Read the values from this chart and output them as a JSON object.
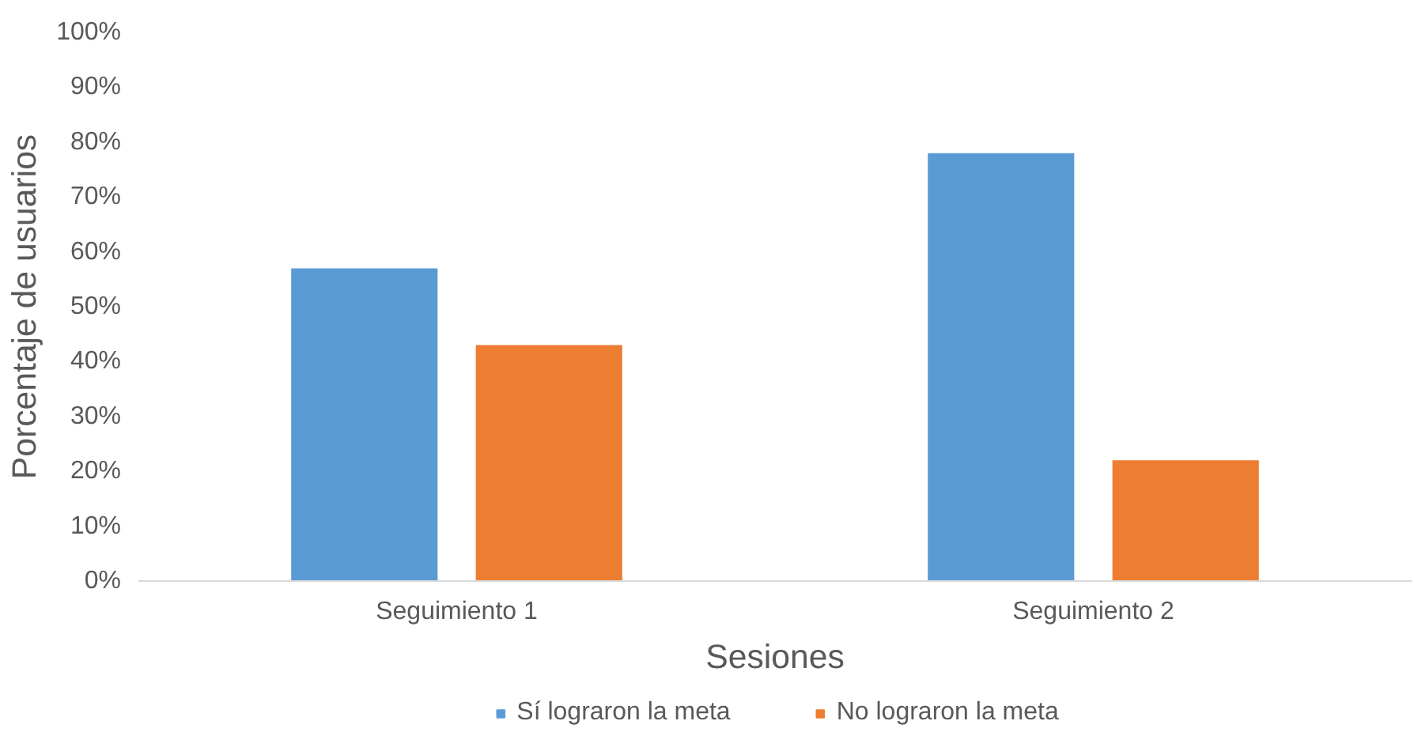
{
  "chart_data": {
    "type": "bar",
    "xlabel": "Sesiones",
    "ylabel": "Porcentaje de usuarios",
    "categories": [
      "Seguimiento 1",
      "Seguimiento 2"
    ],
    "series": [
      {
        "name": "Sí lograron la meta",
        "color": "#5b9bd5",
        "values": [
          57,
          78
        ]
      },
      {
        "name": "No lograron la meta",
        "color": "#ed7d31",
        "values": [
          43,
          22
        ]
      }
    ],
    "ylim": [
      0,
      100
    ],
    "yticks": [
      {
        "value": 0,
        "label": "0%"
      },
      {
        "value": 10,
        "label": "10%"
      },
      {
        "value": 20,
        "label": "20%"
      },
      {
        "value": 30,
        "label": "30%"
      },
      {
        "value": 40,
        "label": "40%"
      },
      {
        "value": 50,
        "label": "50%"
      },
      {
        "value": 60,
        "label": "60%"
      },
      {
        "value": 70,
        "label": "70%"
      },
      {
        "value": 80,
        "label": "80%"
      },
      {
        "value": 90,
        "label": "90%"
      },
      {
        "value": 100,
        "label": "100%"
      }
    ],
    "grid": false,
    "legend": "bottom"
  }
}
